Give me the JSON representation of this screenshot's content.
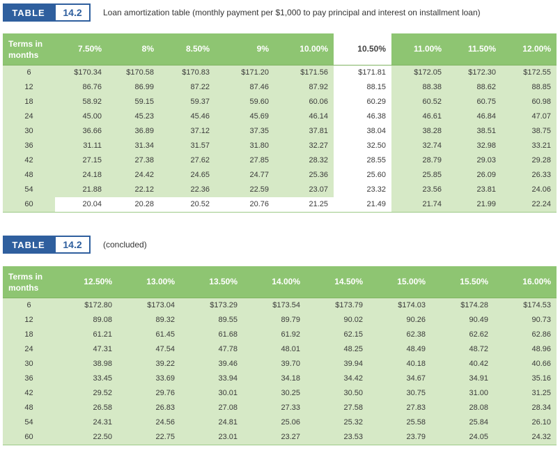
{
  "table1": {
    "label_word": "TABLE",
    "label_number": "14.2",
    "caption": "Loan amortization table (monthly payment per $1,000 to pay principal and interest on installment loan)",
    "terms_header_line1": "Terms in",
    "terms_header_line2": "months",
    "rates": [
      "7.50%",
      "8%",
      "8.50%",
      "9%",
      "10.00%",
      "10.50%",
      "11.00%",
      "11.50%",
      "12.00%"
    ],
    "rows": [
      {
        "term": "6",
        "values": [
          "$170.34",
          "$170.58",
          "$170.83",
          "$171.20",
          "$171.56",
          "$171.81",
          "$172.05",
          "$172.30",
          "$172.55"
        ]
      },
      {
        "term": "12",
        "values": [
          "86.76",
          "86.99",
          "87.22",
          "87.46",
          "87.92",
          "88.15",
          "88.38",
          "88.62",
          "88.85"
        ]
      },
      {
        "term": "18",
        "values": [
          "58.92",
          "59.15",
          "59.37",
          "59.60",
          "60.06",
          "60.29",
          "60.52",
          "60.75",
          "60.98"
        ]
      },
      {
        "term": "24",
        "values": [
          "45.00",
          "45.23",
          "45.46",
          "45.69",
          "46.14",
          "46.38",
          "46.61",
          "46.84",
          "47.07"
        ]
      },
      {
        "term": "30",
        "values": [
          "36.66",
          "36.89",
          "37.12",
          "37.35",
          "37.81",
          "38.04",
          "38.28",
          "38.51",
          "38.75"
        ]
      },
      {
        "term": "36",
        "values": [
          "31.11",
          "31.34",
          "31.57",
          "31.80",
          "32.27",
          "32.50",
          "32.74",
          "32.98",
          "33.21"
        ]
      },
      {
        "term": "42",
        "values": [
          "27.15",
          "27.38",
          "27.62",
          "27.85",
          "28.32",
          "28.55",
          "28.79",
          "29.03",
          "29.28"
        ]
      },
      {
        "term": "48",
        "values": [
          "24.18",
          "24.42",
          "24.65",
          "24.77",
          "25.36",
          "25.60",
          "25.85",
          "26.09",
          "26.33"
        ]
      },
      {
        "term": "54",
        "values": [
          "21.88",
          "22.12",
          "22.36",
          "22.59",
          "23.07",
          "23.32",
          "23.56",
          "23.81",
          "24.06"
        ]
      },
      {
        "term": "60",
        "values": [
          "20.04",
          "20.28",
          "20.52",
          "20.76",
          "21.25",
          "21.49",
          "21.74",
          "21.99",
          "22.24"
        ]
      }
    ]
  },
  "table2": {
    "label_word": "TABLE",
    "label_number": "14.2",
    "caption": "(concluded)",
    "terms_header_line1": "Terms in",
    "terms_header_line2": "months",
    "rates": [
      "12.50%",
      "13.00%",
      "13.50%",
      "14.00%",
      "14.50%",
      "15.00%",
      "15.50%",
      "16.00%"
    ],
    "rows": [
      {
        "term": "6",
        "values": [
          "$172.80",
          "$173.04",
          "$173.29",
          "$173.54",
          "$173.79",
          "$174.03",
          "$174.28",
          "$174.53"
        ]
      },
      {
        "term": "12",
        "values": [
          "89.08",
          "89.32",
          "89.55",
          "89.79",
          "90.02",
          "90.26",
          "90.49",
          "90.73"
        ]
      },
      {
        "term": "18",
        "values": [
          "61.21",
          "61.45",
          "61.68",
          "61.92",
          "62.15",
          "62.38",
          "62.62",
          "62.86"
        ]
      },
      {
        "term": "24",
        "values": [
          "47.31",
          "47.54",
          "47.78",
          "48.01",
          "48.25",
          "48.49",
          "48.72",
          "48.96"
        ]
      },
      {
        "term": "30",
        "values": [
          "38.98",
          "39.22",
          "39.46",
          "39.70",
          "39.94",
          "40.18",
          "40.42",
          "40.66"
        ]
      },
      {
        "term": "36",
        "values": [
          "33.45",
          "33.69",
          "33.94",
          "34.18",
          "34.42",
          "34.67",
          "34.91",
          "35.16"
        ]
      },
      {
        "term": "42",
        "values": [
          "29.52",
          "29.76",
          "30.01",
          "30.25",
          "30.50",
          "30.75",
          "31.00",
          "31.25"
        ]
      },
      {
        "term": "48",
        "values": [
          "26.58",
          "26.83",
          "27.08",
          "27.33",
          "27.58",
          "27.83",
          "28.08",
          "28.34"
        ]
      },
      {
        "term": "54",
        "values": [
          "24.31",
          "24.56",
          "24.81",
          "25.06",
          "25.32",
          "25.58",
          "25.84",
          "26.10"
        ]
      },
      {
        "term": "60",
        "values": [
          "22.50",
          "22.75",
          "23.01",
          "23.27",
          "23.53",
          "23.79",
          "24.05",
          "24.32"
        ]
      }
    ]
  },
  "colors": {
    "label_blue": "#2f5f9e",
    "header_green": "#8ec572",
    "body_green": "#d6e9c6",
    "highlight_white": "#ffffff"
  }
}
